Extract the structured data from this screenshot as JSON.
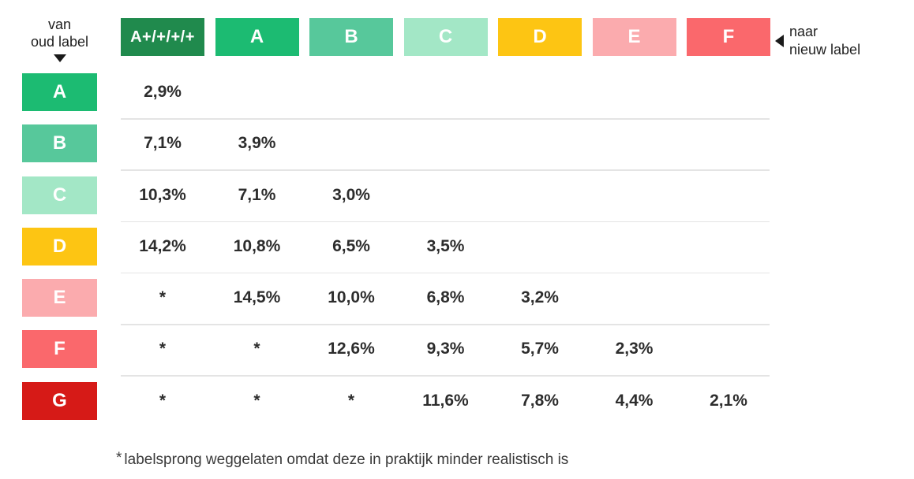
{
  "axis": {
    "from": {
      "line1": "van",
      "line2": "oud label"
    },
    "to": {
      "line1": "naar",
      "line2": "nieuw label"
    }
  },
  "columns": [
    {
      "label": "A+/+/+/+",
      "color": "#208a4d"
    },
    {
      "label": "A",
      "color": "#1cbb72"
    },
    {
      "label": "B",
      "color": "#57c89b"
    },
    {
      "label": "C",
      "color": "#a3e7c6"
    },
    {
      "label": "D",
      "color": "#fdc513"
    },
    {
      "label": "E",
      "color": "#fbabae"
    },
    {
      "label": "F",
      "color": "#fa686c"
    }
  ],
  "rows": [
    {
      "label": "A",
      "color": "#1cbb72",
      "values": [
        "2,9%",
        "",
        "",
        "",
        "",
        "",
        ""
      ]
    },
    {
      "label": "B",
      "color": "#57c89b",
      "values": [
        "7,1%",
        "3,9%",
        "",
        "",
        "",
        "",
        ""
      ]
    },
    {
      "label": "C",
      "color": "#a3e7c6",
      "values": [
        "10,3%",
        "7,1%",
        "3,0%",
        "",
        "",
        "",
        ""
      ]
    },
    {
      "label": "D",
      "color": "#fdc513",
      "values": [
        "14,2%",
        "10,8%",
        "6,5%",
        "3,5%",
        "",
        "",
        ""
      ]
    },
    {
      "label": "E",
      "color": "#fbabae",
      "values": [
        "*",
        "14,5%",
        "10,0%",
        "6,8%",
        "3,2%",
        "",
        ""
      ]
    },
    {
      "label": "F",
      "color": "#fa686c",
      "values": [
        "*",
        "*",
        "12,6%",
        "9,3%",
        "5,7%",
        "2,3%",
        ""
      ]
    },
    {
      "label": "G",
      "color": "#d61a17",
      "values": [
        "*",
        "*",
        "*",
        "11,6%",
        "7,8%",
        "4,4%",
        "2,1%"
      ]
    }
  ],
  "footnote": {
    "marker": "*",
    "text": "labelsprong weggelaten omdat deze in praktijk minder realistisch is"
  },
  "chart_data": {
    "type": "table",
    "title": "",
    "row_axis_label": "van oud label",
    "column_axis_label": "naar nieuw label",
    "columns": [
      "A+/+/+/+",
      "A",
      "B",
      "C",
      "D",
      "E",
      "F"
    ],
    "rows": [
      "A",
      "B",
      "C",
      "D",
      "E",
      "F",
      "G"
    ],
    "values_pct": [
      [
        2.9,
        null,
        null,
        null,
        null,
        null,
        null
      ],
      [
        7.1,
        3.9,
        null,
        null,
        null,
        null,
        null
      ],
      [
        10.3,
        7.1,
        3.0,
        null,
        null,
        null,
        null
      ],
      [
        14.2,
        10.8,
        6.5,
        3.5,
        null,
        null,
        null
      ],
      [
        null,
        14.5,
        10.0,
        6.8,
        3.2,
        null,
        null
      ],
      [
        null,
        null,
        12.6,
        9.3,
        5.7,
        2.3,
        null
      ],
      [
        null,
        null,
        null,
        11.6,
        7.8,
        4.4,
        2.1
      ]
    ],
    "omitted_marker": "*",
    "omitted_note": "labelsprong weggelaten omdat deze in praktijk minder realistisch is",
    "legend_position": "none",
    "grid": "horizontal-dividers"
  }
}
